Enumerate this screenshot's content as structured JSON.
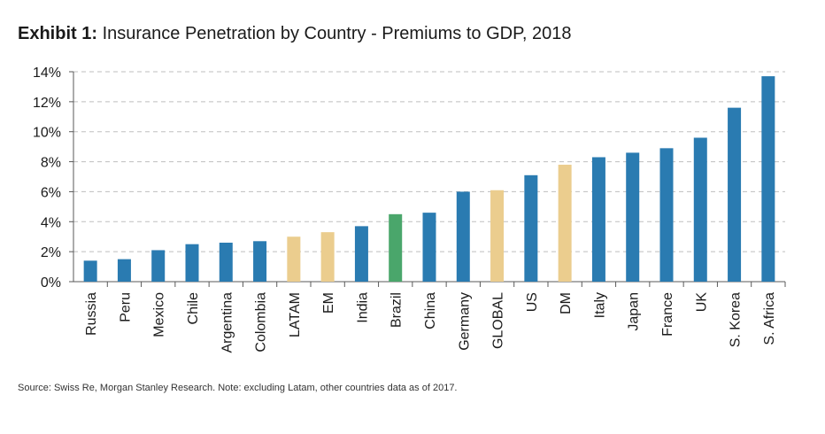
{
  "title": {
    "label": "Exhibit 1:",
    "text": "Insurance Penetration by Country - Premiums to GDP, 2018"
  },
  "source": "Source: Swiss Re, Morgan Stanley Research. Note: excluding Latam, other countries data as of 2017.",
  "colors": {
    "country": "#2a7bb1",
    "aggregate": "#ebcd8e",
    "highlight": "#4aa66b",
    "grid": "#bfbfbf",
    "axis": "#595959",
    "text": "#1a1a1a"
  },
  "chart_data": {
    "type": "bar",
    "categories": [
      "Russia",
      "Peru",
      "Mexico",
      "Chile",
      "Argentina",
      "Colombia",
      "LATAM",
      "EM",
      "India",
      "Brazil",
      "China",
      "Germany",
      "GLOBAL",
      "US",
      "DM",
      "Italy",
      "Japan",
      "France",
      "UK",
      "S. Korea",
      "S. Africa"
    ],
    "values": [
      1.4,
      1.5,
      2.1,
      2.5,
      2.6,
      2.7,
      3.0,
      3.3,
      3.7,
      4.5,
      4.6,
      6.0,
      6.1,
      7.1,
      7.8,
      8.3,
      8.6,
      8.9,
      9.6,
      11.6,
      13.7
    ],
    "bar_groups": [
      "country",
      "country",
      "country",
      "country",
      "country",
      "country",
      "aggregate",
      "aggregate",
      "country",
      "highlight",
      "country",
      "country",
      "aggregate",
      "country",
      "aggregate",
      "country",
      "country",
      "country",
      "country",
      "country",
      "country"
    ],
    "y_ticks": [
      "0%",
      "2%",
      "4%",
      "6%",
      "8%",
      "10%",
      "12%",
      "14%"
    ],
    "ylim": [
      0,
      14
    ],
    "ytick_step": 2,
    "grid": true,
    "legend": "none"
  }
}
